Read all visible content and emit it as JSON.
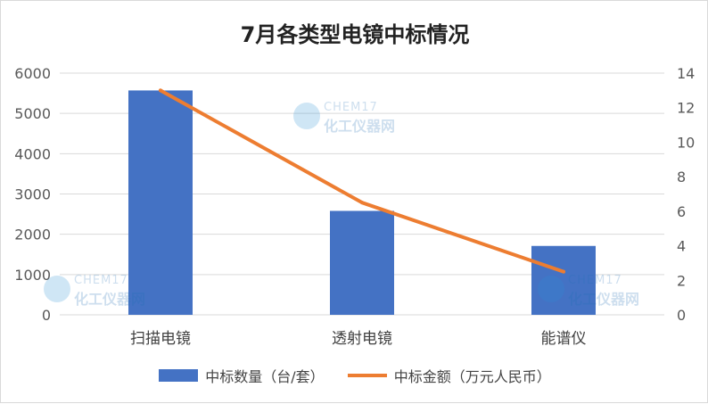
{
  "chart_data": {
    "type": "bar",
    "title": "7月各类型电镜中标情况",
    "categories": [
      "扫描电镜",
      "透射电镜",
      "能谱仪"
    ],
    "series": [
      {
        "name": "中标数量（台/套）",
        "type": "bar",
        "axis": "left",
        "color": "#4472C4",
        "values": [
          5570,
          2580,
          1710
        ]
      },
      {
        "name": "中标金额（万元人民币）",
        "type": "line",
        "axis": "right",
        "color": "#ED7D31",
        "values": [
          13.0,
          6.5,
          2.5
        ]
      }
    ],
    "y_left": {
      "lim": [
        0,
        6000
      ],
      "ticks": [
        "0",
        "1000",
        "2000",
        "3000",
        "4000",
        "5000",
        "6000"
      ]
    },
    "y_right": {
      "lim": [
        0,
        14
      ],
      "ticks": [
        "0",
        "2",
        "4",
        "6",
        "8",
        "10",
        "12",
        "14"
      ]
    },
    "grid": true,
    "legend": "bottom"
  },
  "watermark": {
    "brand": "CHEM17",
    "name": "化工仪器网"
  }
}
